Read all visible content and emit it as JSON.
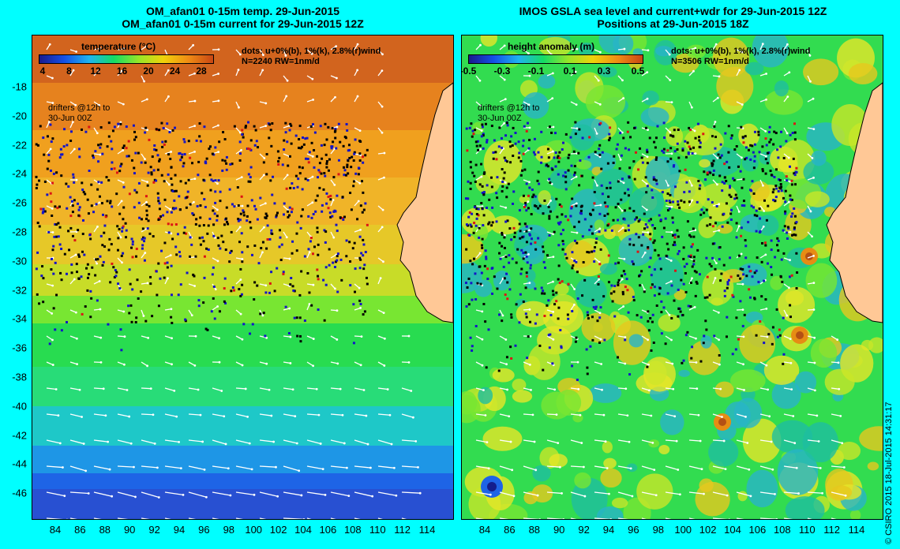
{
  "left": {
    "title_line1": "OM_afan01 0-15m temp. 29-Jun-2015",
    "title_line2": "OM_afan01 0-15m current for 29-Jun-2015 12Z",
    "colorbar_title": "temperature (°C)",
    "colorbar_ticks": [
      "4",
      "8",
      "12",
      "16",
      "20",
      "24",
      "28"
    ],
    "dots_note_line1": "dots: u+0%(b), 1%(k), 2.8%(r)wind",
    "dots_note_line2": "N=2240 RW=1nm/d",
    "drifters_line1": "drifters @12h to",
    "drifters_line2": "30-Jun 00Z",
    "colors": [
      "#1a1a8c",
      "#1450e6",
      "#1eb4f0",
      "#14dc64",
      "#96e628",
      "#f0d20a",
      "#f08c14",
      "#c84614"
    ]
  },
  "right": {
    "title_line1": "IMOS GSLA sea level and current+wdr for 29-Jun-2015 12Z",
    "title_line2": "Positions at 29-Jun-2015 18Z",
    "colorbar_title": "height anomaly (m)",
    "colorbar_ticks": [
      "-0.5",
      "-0.3",
      "-0.1",
      "0.1",
      "0.3",
      "0.5"
    ],
    "dots_note_line1": "dots: u+0%(b), 1%(k), 2.8%(r)wind",
    "dots_note_line2": "N=3506 RW=1nm/d",
    "drifters_line1": "drifters @12h to",
    "drifters_line2": "30-Jun 00Z",
    "colors": [
      "#1a1a8c",
      "#1450e6",
      "#1eb4f0",
      "#14dc64",
      "#96e628",
      "#f0d20a",
      "#f08c14",
      "#c84614"
    ]
  },
  "y_ticks": [
    "-18",
    "-20",
    "-22",
    "-24",
    "-26",
    "-28",
    "-30",
    "-32",
    "-34",
    "-36",
    "-38",
    "-40",
    "-42",
    "-44",
    "-46"
  ],
  "x_ticks": [
    "84",
    "86",
    "88",
    "90",
    "92",
    "94",
    "96",
    "98",
    "100",
    "102",
    "104",
    "106",
    "108",
    "110",
    "112",
    "114"
  ],
  "copyright": "© CSIRO 2015   18-Jul-2015 14:31:17",
  "land_color": "#ffc896",
  "coast_color": "#20c0c0"
}
